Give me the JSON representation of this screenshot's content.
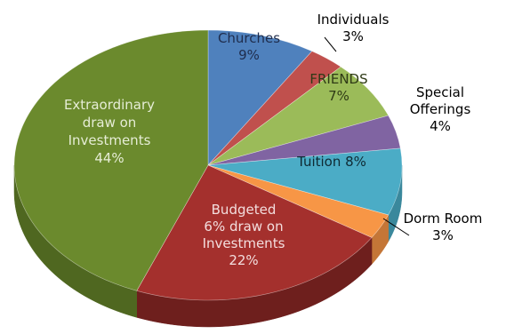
{
  "chart_data": {
    "type": "pie",
    "three_d": true,
    "title": "",
    "start_angle_deg": 0,
    "slices": [
      {
        "label": "Churches",
        "value": 9,
        "color": "#4f81bd",
        "side": "#3f6796",
        "label_color": "#1f2d4d",
        "label_lines": [
          "Churches",
          "9%"
        ]
      },
      {
        "label": "Individuals",
        "value": 3,
        "color": "#c0504d",
        "side": "#983f3d",
        "label_color": "#000000",
        "label_lines": [
          "Individuals",
          "3%"
        ]
      },
      {
        "label": "FRIENDS",
        "value": 7,
        "color": "#9bbb59",
        "side": "#7a9446",
        "label_color": "#2f3a16",
        "label_lines": [
          "FRIENDS",
          "7%"
        ]
      },
      {
        "label": "Special Offerings",
        "value": 4,
        "color": "#8064a2",
        "side": "#654f80",
        "label_color": "#000000",
        "label_lines": [
          "Special",
          "Offerings",
          "4%"
        ]
      },
      {
        "label": "Tuition",
        "value": 8,
        "color": "#4bacc6",
        "side": "#3a889c",
        "label_color": "#0f2a33",
        "label_lines": [
          "Tuition 8%"
        ]
      },
      {
        "label": "Dorm Room",
        "value": 3,
        "color": "#f79646",
        "side": "#c47637",
        "label_color": "#000000",
        "label_lines": [
          "Dorm Room",
          "3%"
        ]
      },
      {
        "label": "Budgeted 6% draw on Investments",
        "value": 22,
        "color": "#a4302d",
        "side": "#6e1f1d",
        "label_color": "#f3dede",
        "label_lines": [
          "Budgeted",
          "6% draw on",
          "Investments",
          "22%"
        ]
      },
      {
        "label": "Extraordinary draw on Investments",
        "value": 44,
        "color": "#6b8a2d",
        "side": "#4f6720",
        "label_color": "#e6edd6",
        "label_lines": [
          "Extraordinary",
          "draw on",
          "Investments",
          "44%"
        ]
      }
    ]
  }
}
